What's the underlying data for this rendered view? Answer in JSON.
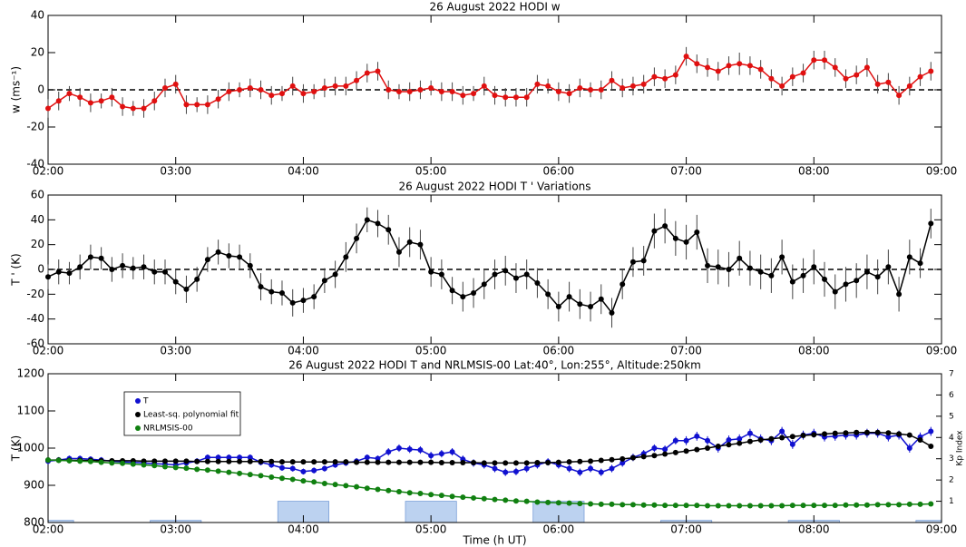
{
  "chart_data": [
    {
      "type": "line",
      "title": "26 August 2022 HODI w",
      "ylabel": "w (ms⁻¹)",
      "xlim": [
        "02:00",
        "09:00"
      ],
      "xticks": [
        "02:00",
        "03:00",
        "04:00",
        "05:00",
        "06:00",
        "07:00",
        "08:00",
        "09:00"
      ],
      "ylim": [
        -40,
        40
      ],
      "yticks": [
        -40,
        -20,
        0,
        20,
        40
      ],
      "hline": 0,
      "color": "#e01010",
      "error_color": "#444444",
      "x": [
        "02:00",
        "02:05",
        "02:10",
        "02:15",
        "02:20",
        "02:25",
        "02:30",
        "02:35",
        "02:40",
        "02:45",
        "02:50",
        "02:55",
        "03:00",
        "03:05",
        "03:10",
        "03:15",
        "03:20",
        "03:25",
        "03:30",
        "03:35",
        "03:40",
        "03:45",
        "03:50",
        "03:55",
        "04:00",
        "04:05",
        "04:10",
        "04:15",
        "04:20",
        "04:25",
        "04:30",
        "04:35",
        "04:40",
        "04:45",
        "04:50",
        "04:55",
        "05:00",
        "05:05",
        "05:10",
        "05:15",
        "05:20",
        "05:25",
        "05:30",
        "05:35",
        "05:40",
        "05:45",
        "05:50",
        "05:55",
        "06:00",
        "06:05",
        "06:10",
        "06:15",
        "06:20",
        "06:25",
        "06:30",
        "06:35",
        "06:40",
        "06:45",
        "06:50",
        "06:55",
        "07:00",
        "07:05",
        "07:10",
        "07:15",
        "07:20",
        "07:25",
        "07:30",
        "07:35",
        "07:40",
        "07:45",
        "07:50",
        "07:55",
        "08:00",
        "08:05",
        "08:10",
        "08:15",
        "08:20",
        "08:25",
        "08:30",
        "08:35",
        "08:40",
        "08:45",
        "08:50",
        "08:55"
      ],
      "values": [
        -10,
        -6,
        -2,
        -4,
        -7,
        -6,
        -4,
        -9,
        -10,
        -10,
        -6,
        1,
        3,
        -8,
        -8,
        -8,
        -5,
        -1,
        0,
        1,
        0,
        -3,
        -2,
        2,
        -2,
        -1,
        1,
        2,
        2,
        5,
        9,
        10,
        0,
        -1,
        -1,
        0,
        1,
        -1,
        -1,
        -3,
        -2,
        2,
        -3,
        -4,
        -4,
        -4,
        3,
        2,
        -1,
        -2,
        1,
        0,
        0,
        5,
        1,
        2,
        3,
        7,
        6,
        8,
        18,
        14,
        12,
        10,
        13,
        14,
        13,
        11,
        6,
        2,
        7,
        9,
        16,
        16,
        12,
        6,
        8,
        12,
        3,
        4,
        -3,
        2,
        7,
        10
      ],
      "errors": [
        5,
        5,
        4,
        5,
        5,
        4,
        5,
        5,
        4,
        5,
        5,
        5,
        5,
        5,
        4,
        5,
        5,
        5,
        4,
        5,
        5,
        5,
        4,
        5,
        5,
        4,
        5,
        5,
        5,
        5,
        5,
        5,
        5,
        4,
        5,
        5,
        4,
        5,
        5,
        5,
        4,
        5,
        5,
        5,
        5,
        5,
        5,
        4,
        5,
        5,
        5,
        4,
        5,
        5,
        5,
        5,
        5,
        5,
        5,
        5,
        5,
        5,
        5,
        5,
        5,
        6,
        5,
        5,
        5,
        5,
        5,
        5,
        5,
        5,
        5,
        5,
        5,
        5,
        5,
        5,
        5,
        5,
        5,
        5
      ]
    },
    {
      "type": "line",
      "title": "26 August 2022 HODI T ' Variations",
      "ylabel": "T ' (K)",
      "xlim": [
        "02:00",
        "09:00"
      ],
      "xticks": [
        "02:00",
        "03:00",
        "04:00",
        "05:00",
        "06:00",
        "07:00",
        "08:00",
        "09:00"
      ],
      "ylim": [
        -60,
        60
      ],
      "yticks": [
        -60,
        -40,
        -20,
        0,
        20,
        40,
        60
      ],
      "hline": 0,
      "color": "#000000",
      "error_color": "#444444",
      "x": [
        "02:00",
        "02:05",
        "02:10",
        "02:15",
        "02:20",
        "02:25",
        "02:30",
        "02:35",
        "02:40",
        "02:45",
        "02:50",
        "02:55",
        "03:00",
        "03:05",
        "03:10",
        "03:15",
        "03:20",
        "03:25",
        "03:30",
        "03:35",
        "03:40",
        "03:45",
        "03:50",
        "03:55",
        "04:00",
        "04:05",
        "04:10",
        "04:15",
        "04:20",
        "04:25",
        "04:30",
        "04:35",
        "04:40",
        "04:45",
        "04:50",
        "04:55",
        "05:00",
        "05:05",
        "05:10",
        "05:15",
        "05:20",
        "05:25",
        "05:30",
        "05:35",
        "05:40",
        "05:45",
        "05:50",
        "05:55",
        "06:00",
        "06:05",
        "06:10",
        "06:15",
        "06:20",
        "06:25",
        "06:30",
        "06:35",
        "06:40",
        "06:45",
        "06:50",
        "06:55",
        "07:00",
        "07:05",
        "07:10",
        "07:15",
        "07:20",
        "07:25",
        "07:30",
        "07:35",
        "07:40",
        "07:45",
        "07:50",
        "07:55",
        "08:00",
        "08:05",
        "08:10",
        "08:15",
        "08:20",
        "08:25",
        "08:30",
        "08:35",
        "08:40",
        "08:45",
        "08:50",
        "08:55"
      ],
      "values": [
        -6,
        -2,
        -3,
        2,
        10,
        9,
        0,
        3,
        1,
        2,
        -2,
        -2,
        -10,
        -16,
        -8,
        8,
        14,
        11,
        10,
        3,
        -14,
        -18,
        -19,
        -27,
        -25,
        -22,
        -9,
        -4,
        10,
        25,
        40,
        37,
        32,
        14,
        22,
        20,
        -2,
        -4,
        -17,
        -22,
        -19,
        -12,
        -4,
        -1,
        -7,
        -4,
        -11,
        -20,
        -30,
        -22,
        -28,
        -30,
        -24,
        -35,
        -12,
        6,
        7,
        31,
        35,
        25,
        22,
        30,
        3,
        2,
        0,
        9,
        1,
        -2,
        -5,
        10,
        -10,
        -5,
        2,
        -8,
        -18,
        -12,
        -9,
        -2,
        -6,
        2,
        -20,
        10,
        5,
        37
      ],
      "errors": [
        10,
        10,
        9,
        10,
        10,
        9,
        10,
        10,
        9,
        10,
        10,
        10,
        10,
        11,
        10,
        10,
        10,
        10,
        10,
        10,
        11,
        10,
        10,
        11,
        10,
        10,
        10,
        11,
        12,
        12,
        10,
        11,
        12,
        12,
        12,
        12,
        12,
        12,
        11,
        12,
        12,
        12,
        12,
        12,
        12,
        12,
        12,
        12,
        12,
        12,
        12,
        12,
        12,
        12,
        12,
        12,
        12,
        14,
        14,
        14,
        14,
        14,
        14,
        14,
        14,
        14,
        14,
        14,
        14,
        14,
        14,
        14,
        14,
        14,
        14,
        14,
        14,
        14,
        14,
        14,
        14,
        14,
        12,
        12
      ]
    },
    {
      "type": "line",
      "title": "26 August 2022 HODI T and NRLMSIS-00 Lat:40°, Lon:255°, Altitude:250km",
      "ylabel": "T (K)",
      "xlabel": "Time (h UT)",
      "y2label": "Kp Index",
      "xlim": [
        "02:00",
        "09:00"
      ],
      "xticks": [
        "02:00",
        "03:00",
        "04:00",
        "05:00",
        "06:00",
        "07:00",
        "08:00",
        "09:00"
      ],
      "ylim": [
        800,
        1200
      ],
      "yticks": [
        800,
        900,
        1000,
        1100,
        1200
      ],
      "y2lim": [
        0,
        7
      ],
      "y2ticks": [
        1,
        2,
        3,
        4,
        5,
        6,
        7
      ],
      "legend": "upper left",
      "kp": {
        "axis": "y2",
        "color": "#bcd2f0",
        "x": [
          "02:00",
          "03:00",
          "04:00",
          "05:00",
          "06:00",
          "07:00",
          "08:00",
          "09:00"
        ],
        "values": [
          0.1,
          0.1,
          1,
          1,
          1,
          0.1,
          0.1,
          0.1
        ]
      },
      "x": [
        "02:00",
        "02:05",
        "02:10",
        "02:15",
        "02:20",
        "02:25",
        "02:30",
        "02:35",
        "02:40",
        "02:45",
        "02:50",
        "02:55",
        "03:00",
        "03:05",
        "03:10",
        "03:15",
        "03:20",
        "03:25",
        "03:30",
        "03:35",
        "03:40",
        "03:45",
        "03:50",
        "03:55",
        "04:00",
        "04:05",
        "04:10",
        "04:15",
        "04:20",
        "04:25",
        "04:30",
        "04:35",
        "04:40",
        "04:45",
        "04:50",
        "04:55",
        "05:00",
        "05:05",
        "05:10",
        "05:15",
        "05:20",
        "05:25",
        "05:30",
        "05:35",
        "05:40",
        "05:45",
        "05:50",
        "05:55",
        "06:00",
        "06:05",
        "06:10",
        "06:15",
        "06:20",
        "06:25",
        "06:30",
        "06:35",
        "06:40",
        "06:45",
        "06:50",
        "06:55",
        "07:00",
        "07:05",
        "07:10",
        "07:15",
        "07:20",
        "07:25",
        "07:30",
        "07:35",
        "07:40",
        "07:45",
        "07:50",
        "07:55",
        "08:00",
        "08:05",
        "08:10",
        "08:15",
        "08:20",
        "08:25",
        "08:30",
        "08:35",
        "08:40",
        "08:45",
        "08:50",
        "08:55"
      ],
      "series": [
        {
          "name": "T",
          "color": "#1010d0",
          "error_color": "#1010d0",
          "values": [
            965,
            968,
            972,
            972,
            970,
            968,
            965,
            963,
            962,
            960,
            958,
            957,
            955,
            960,
            965,
            975,
            975,
            975,
            975,
            975,
            962,
            955,
            947,
            945,
            937,
            940,
            945,
            955,
            960,
            965,
            975,
            972,
            990,
            1000,
            997,
            995,
            980,
            985,
            990,
            970,
            960,
            955,
            945,
            935,
            937,
            945,
            955,
            963,
            955,
            945,
            935,
            945,
            935,
            945,
            960,
            975,
            985,
            1000,
            997,
            1020,
            1020,
            1032,
            1020,
            1000,
            1022,
            1025,
            1040,
            1025,
            1020,
            1045,
            1010,
            1035,
            1040,
            1030,
            1032,
            1035,
            1035,
            1040,
            1040,
            1030,
            1035,
            1000,
            1030,
            1045
          ],
          "errors": [
            8,
            8,
            8,
            8,
            8,
            8,
            8,
            8,
            8,
            8,
            8,
            8,
            8,
            8,
            8,
            8,
            8,
            8,
            8,
            8,
            8,
            8,
            8,
            8,
            8,
            8,
            8,
            8,
            8,
            8,
            8,
            8,
            10,
            10,
            10,
            10,
            10,
            10,
            10,
            10,
            10,
            10,
            10,
            10,
            10,
            10,
            10,
            10,
            10,
            10,
            10,
            10,
            10,
            10,
            10,
            10,
            10,
            10,
            10,
            10,
            12,
            12,
            12,
            12,
            12,
            12,
            12,
            12,
            12,
            12,
            12,
            12,
            12,
            12,
            12,
            12,
            12,
            12,
            12,
            12,
            12,
            12,
            12,
            12
          ]
        },
        {
          "name": "Least-sq. polynomial fit",
          "color": "#000000",
          "values": [
            968,
            968,
            967,
            967,
            967,
            966,
            966,
            966,
            966,
            965,
            965,
            965,
            965,
            965,
            964,
            964,
            964,
            964,
            964,
            964,
            964,
            964,
            963,
            963,
            963,
            963,
            963,
            963,
            963,
            962,
            962,
            962,
            962,
            962,
            962,
            962,
            962,
            961,
            961,
            961,
            961,
            960,
            960,
            960,
            960,
            960,
            961,
            961,
            962,
            963,
            964,
            965,
            967,
            969,
            971,
            974,
            977,
            980,
            984,
            988,
            992,
            996,
            1000,
            1005,
            1009,
            1013,
            1018,
            1022,
            1025,
            1028,
            1031,
            1034,
            1036,
            1038,
            1040,
            1041,
            1042,
            1042,
            1042,
            1041,
            1038,
            1035,
            1022,
            1005
          ]
        },
        {
          "name": "NRLMSIS-00",
          "color": "#108010",
          "values": [
            968,
            967,
            966,
            965,
            964,
            962,
            960,
            959,
            957,
            955,
            953,
            950,
            948,
            946,
            943,
            941,
            938,
            935,
            932,
            929,
            926,
            922,
            919,
            916,
            912,
            909,
            905,
            902,
            899,
            896,
            892,
            889,
            886,
            883,
            880,
            878,
            875,
            873,
            870,
            868,
            866,
            864,
            862,
            860,
            858,
            857,
            855,
            854,
            853,
            852,
            851,
            850,
            849,
            849,
            848,
            848,
            847,
            847,
            846,
            846,
            846,
            846,
            845,
            845,
            845,
            845,
            845,
            845,
            845,
            845,
            846,
            846,
            846,
            846,
            846,
            847,
            847,
            847,
            848,
            848,
            848,
            849,
            849,
            850
          ]
        }
      ]
    }
  ]
}
